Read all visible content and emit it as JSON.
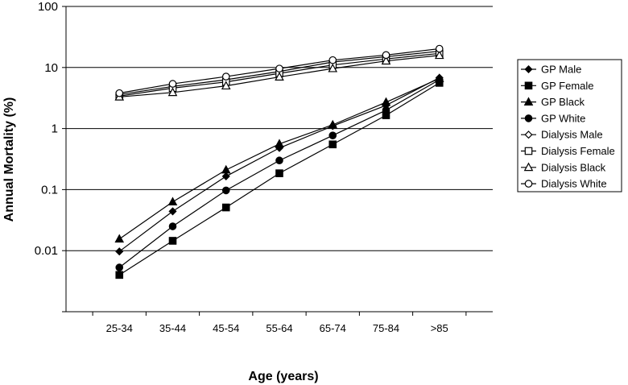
{
  "chart_data": {
    "type": "line",
    "xlabel": "Age (years)",
    "ylabel": "Annual Mortality (%)",
    "y_scale": "log",
    "ylim": [
      0.001,
      100
    ],
    "y_ticks": [
      "100",
      "10",
      "1",
      "0.1",
      "0.01"
    ],
    "y_tick_values": [
      100,
      10,
      1,
      0.1,
      0.01
    ],
    "grid": "horizontal",
    "legend_position": "right",
    "categories": [
      "25-34",
      "35-44",
      "45-54",
      "55-64",
      "65-74",
      "75-84",
      ">85"
    ],
    "series": [
      {
        "name": "GP Male",
        "marker": "diamond-filled",
        "values": [
          0.0097,
          0.044,
          0.165,
          0.48,
          1.1,
          2.4,
          6.8
        ]
      },
      {
        "name": "GP Female",
        "marker": "square-filled",
        "values": [
          0.004,
          0.0145,
          0.051,
          0.185,
          0.55,
          1.65,
          5.6
        ]
      },
      {
        "name": "GP Black",
        "marker": "triangle-filled",
        "values": [
          0.0155,
          0.063,
          0.21,
          0.56,
          1.15,
          2.7,
          6.6
        ]
      },
      {
        "name": "GP White",
        "marker": "circle-filled",
        "values": [
          0.0053,
          0.025,
          0.097,
          0.3,
          0.77,
          2.0,
          6.3
        ]
      },
      {
        "name": "Dialysis Male",
        "marker": "diamond-open",
        "values": [
          3.6,
          4.9,
          6.3,
          8.6,
          12.3,
          15.0,
          18.5
        ]
      },
      {
        "name": "Dialysis Female",
        "marker": "square-open",
        "values": [
          3.4,
          4.6,
          5.8,
          8.0,
          11.0,
          13.8,
          17.0
        ]
      },
      {
        "name": "Dialysis Black",
        "marker": "triangle-open",
        "values": [
          3.3,
          3.9,
          5.0,
          7.0,
          9.6,
          12.8,
          15.8
        ]
      },
      {
        "name": "Dialysis White",
        "marker": "circle-open",
        "values": [
          3.8,
          5.4,
          7.1,
          9.6,
          13.2,
          16.0,
          20.3
        ]
      }
    ]
  }
}
